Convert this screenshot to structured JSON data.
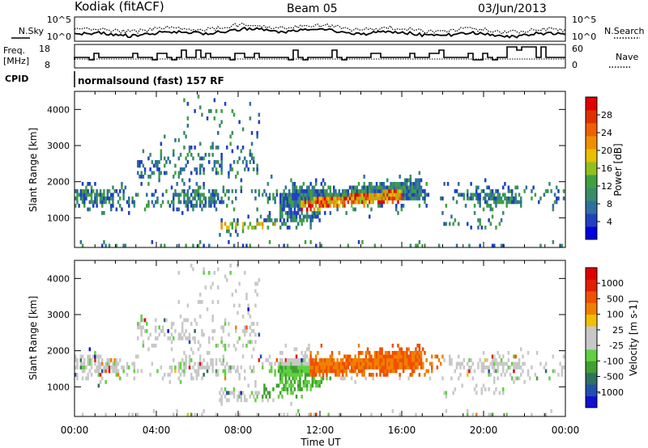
{
  "header": {
    "station": "Kodiak (fitACF)",
    "beam": "Beam 05",
    "date": "03/Jun/2013"
  },
  "summary": {
    "nsky_label": "N.Sky",
    "nsearch_label": "N.Search",
    "freq_label_1": "Freq.",
    "freq_label_2": "[MHz]",
    "nave_label": "Nave",
    "cpid_label": "CPID",
    "cpid_value": "normalsound (fast) 157 RF",
    "noise_ticks_left": [
      "10^5",
      "10^0"
    ],
    "noise_ticks_right": [
      "10^5",
      "10^0"
    ],
    "freq_ticks": [
      "18",
      "8"
    ],
    "nave_ticks": [
      "60",
      "0"
    ]
  },
  "chart_data": [
    {
      "type": "heatmap",
      "title": "",
      "ylabel": "Slant Range [km]",
      "xlabel": "",
      "x_ticks": [
        "00:00",
        "04:00",
        "08:00",
        "12:00",
        "16:00",
        "20:00",
        "00:00"
      ],
      "y_ticks": [
        "1000",
        "2000",
        "3000",
        "4000"
      ],
      "ylim": [
        180,
        4500
      ],
      "colorbar": {
        "label": "Power [dB]",
        "ticks": [
          "4",
          "8",
          "12",
          "16",
          "20",
          "24",
          "28"
        ],
        "colors": [
          "#0000e0",
          "#2040c0",
          "#2f6fa0",
          "#3a8c6a",
          "#40a040",
          "#90c020",
          "#e8c000",
          "#f09000",
          "#f06000",
          "#e03000",
          "#e00000"
        ]
      }
    },
    {
      "type": "heatmap",
      "title": "",
      "ylabel": "Slant Range [km]",
      "xlabel": "Time UT",
      "x_ticks": [
        "00:00",
        "04:00",
        "08:00",
        "12:00",
        "16:00",
        "20:00",
        "00:00"
      ],
      "y_ticks": [
        "1000",
        "2000",
        "3000",
        "4000"
      ],
      "ylim": [
        180,
        4500
      ],
      "colorbar": {
        "label": "Velocity [m s-1]",
        "ticks": [
          "1000",
          "500",
          "100",
          "25",
          "-25",
          "-100",
          "-500",
          "-1000"
        ],
        "colors": [
          "#1010d0",
          "#2050b0",
          "#307060",
          "#40a030",
          "#60d040",
          "#c8c8c8",
          "#c8c8c8",
          "#f0c000",
          "#f08000",
          "#f05000",
          "#e02000",
          "#e00000"
        ]
      }
    }
  ]
}
